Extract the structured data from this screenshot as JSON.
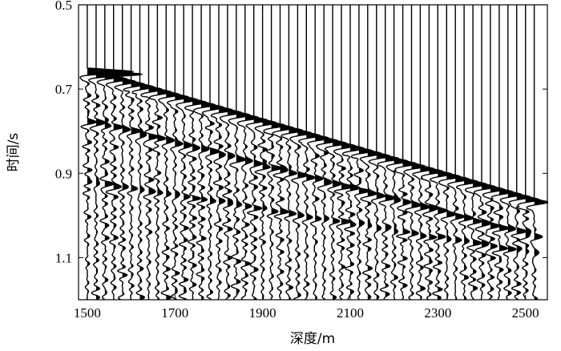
{
  "chart_data": {
    "type": "seismic_wiggle",
    "xlabel": "深度/m",
    "ylabel": "时间/s",
    "xlim": [
      1480,
      2550
    ],
    "ylim": [
      0.5,
      1.2
    ],
    "y_reversed": true,
    "x_ticks": [
      1500,
      1700,
      1900,
      2100,
      2300,
      2500
    ],
    "x_tick_labels": [
      "1500",
      "1700",
      "1900",
      "2100",
      "2300",
      "2500"
    ],
    "y_ticks": [
      0.5,
      0.7,
      0.9,
      1.1
    ],
    "y_tick_labels": [
      "0.5",
      "0.7",
      "0.9",
      "1.1"
    ],
    "trace_depths": [
      1500,
      1520,
      1540,
      1560,
      1580,
      1600,
      1620,
      1640,
      1660,
      1680,
      1700,
      1720,
      1740,
      1760,
      1780,
      1800,
      1820,
      1840,
      1860,
      1880,
      1900,
      1920,
      1940,
      1960,
      1980,
      2000,
      2020,
      2040,
      2060,
      2080,
      2100,
      2120,
      2140,
      2160,
      2180,
      2200,
      2220,
      2240,
      2260,
      2280,
      2300,
      2320,
      2340,
      2360,
      2380,
      2400,
      2420,
      2440,
      2460,
      2480,
      2500,
      2520
    ],
    "first_break_time": {
      "at_depth_1500": 0.655,
      "at_depth_2520": 0.965
    },
    "secondary_event_time": {
      "at_depth_1500": 0.775,
      "at_depth_2520": 1.05
    },
    "tertiary_event_time": {
      "at_depth_1500": 0.92,
      "at_depth_2520": 1.09
    },
    "fill_polarity": "positive",
    "grid": false,
    "colors": {
      "trace": "#000000",
      "fill": "#000000",
      "background": "#ffffff"
    }
  }
}
